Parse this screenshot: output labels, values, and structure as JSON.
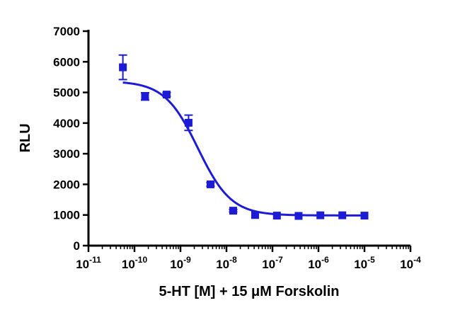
{
  "chart_data": {
    "type": "scatter",
    "title": "",
    "xlabel": "5-HT [M] + 15 μM Forskolin",
    "ylabel": "RLU",
    "x_scale": "log",
    "xlim": [
      1e-11,
      0.0001
    ],
    "ylim": [
      0,
      7000
    ],
    "x_ticks": [
      {
        "value": 1e-11,
        "base": "10",
        "exp": "-11"
      },
      {
        "value": 1e-10,
        "base": "10",
        "exp": "-10"
      },
      {
        "value": 1e-09,
        "base": "10",
        "exp": "-9"
      },
      {
        "value": 1e-08,
        "base": "10",
        "exp": "-8"
      },
      {
        "value": 1e-07,
        "base": "10",
        "exp": "-7"
      },
      {
        "value": 1e-06,
        "base": "10",
        "exp": "-6"
      },
      {
        "value": 1e-05,
        "base": "10",
        "exp": "-5"
      },
      {
        "value": 0.0001,
        "base": "10",
        "exp": "-4"
      }
    ],
    "y_ticks": [
      {
        "value": 0,
        "label": "0"
      },
      {
        "value": 1000,
        "label": "1000"
      },
      {
        "value": 2000,
        "label": "2000"
      },
      {
        "value": 3000,
        "label": "3000"
      },
      {
        "value": 4000,
        "label": "4000"
      },
      {
        "value": 5000,
        "label": "5000"
      },
      {
        "value": 6000,
        "label": "6000"
      },
      {
        "value": 7000,
        "label": "7000"
      }
    ],
    "grid": false,
    "color": "#1c1cd6",
    "series": [
      {
        "marker": "square",
        "points": [
          {
            "x": 5.6e-11,
            "y": 5820,
            "err": 400
          },
          {
            "x": 1.7e-10,
            "y": 4870,
            "err": 120
          },
          {
            "x": 5e-10,
            "y": 4930,
            "err": 60
          },
          {
            "x": 1.5e-09,
            "y": 4010,
            "err": 250
          },
          {
            "x": 4.5e-09,
            "y": 2000,
            "err": 60
          },
          {
            "x": 1.4e-08,
            "y": 1140,
            "err": 40
          },
          {
            "x": 4.2e-08,
            "y": 1000,
            "err": 0
          },
          {
            "x": 1.25e-07,
            "y": 980,
            "err": 0
          },
          {
            "x": 3.7e-07,
            "y": 970,
            "err": 0
          },
          {
            "x": 1.1e-06,
            "y": 990,
            "err": 0
          },
          {
            "x": 3.3e-06,
            "y": 990,
            "err": 0
          },
          {
            "x": 1e-05,
            "y": 980,
            "err": 0
          }
        ]
      }
    ],
    "fit_curve": {
      "model": "sigmoidal-dose-response",
      "top": 5370,
      "bottom": 985,
      "log_ec50": -8.62,
      "hill_slope": -1.2,
      "x_range": [
        5.6e-11,
        1e-05
      ]
    }
  }
}
